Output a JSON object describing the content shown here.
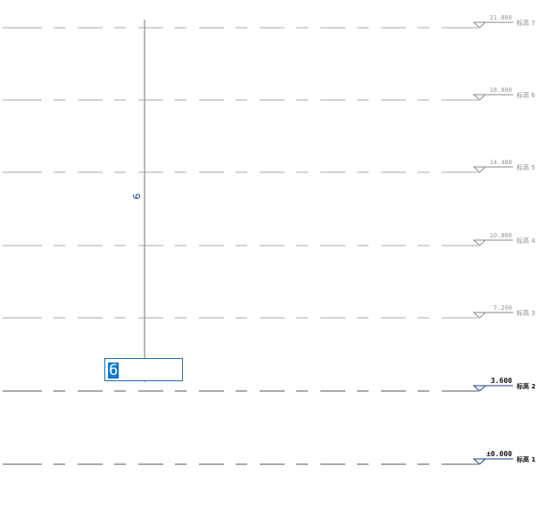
{
  "grid": {
    "label": "6",
    "edit_value": "6"
  },
  "levels": [
    {
      "name": "标高 7",
      "elevation": "21.000",
      "selected": false
    },
    {
      "name": "标高 6",
      "elevation": "18.000",
      "selected": false
    },
    {
      "name": "标高 5",
      "elevation": "14.400",
      "selected": false
    },
    {
      "name": "标高 4",
      "elevation": "10.800",
      "selected": false
    },
    {
      "name": "标高 3",
      "elevation": "7.200",
      "selected": false
    },
    {
      "name": "标高 2",
      "elevation": "3.600",
      "selected": true
    },
    {
      "name": "标高 1",
      "elevation": "±0.000",
      "selected": true
    }
  ],
  "colors": {
    "line": "#9a9a9a",
    "selected": "#1a3f8a",
    "accent": "#0a78d7"
  }
}
